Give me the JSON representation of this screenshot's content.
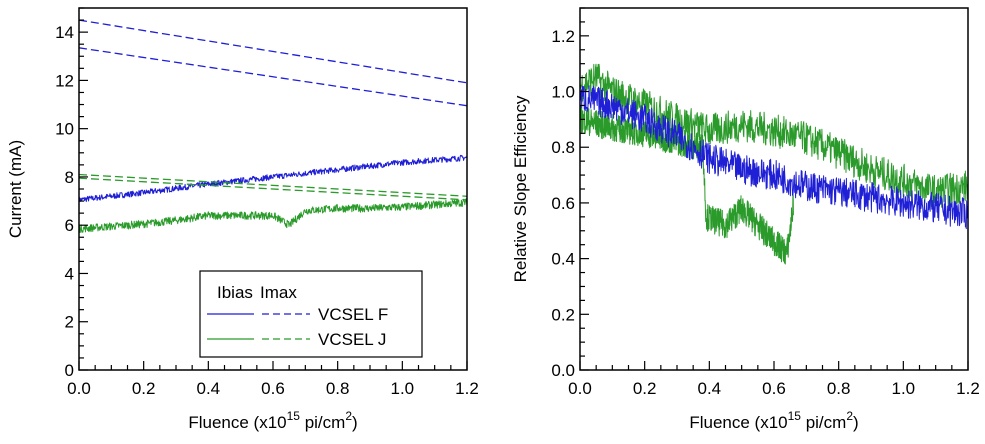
{
  "chart_data": [
    {
      "type": "line",
      "xlabel": "Fluence (x10",
      "xlabel_exp": "15",
      "xlabel_unit": " pi/cm",
      "xlabel_unit_exp": "2",
      "xlabel_close": ")",
      "ylabel": "Current (mA)",
      "xlim": [
        0,
        1.2
      ],
      "ylim": [
        0,
        15
      ],
      "xticks": [
        "0.0",
        "0.2",
        "0.4",
        "0.6",
        "0.8",
        "1.0",
        "1.2"
      ],
      "yticks": [
        "0",
        "2",
        "4",
        "6",
        "8",
        "10",
        "12",
        "14"
      ],
      "legend": {
        "placement": "bottom-right",
        "col_ibias": "Ibias",
        "col_imax": "Imax",
        "rows": [
          "VCSEL F",
          "VCSEL J"
        ]
      },
      "series": [
        {
          "name": "VCSEL F",
          "kind": "Ibias",
          "color": "#1f1fd6",
          "dash": false,
          "noise": 0.12,
          "x": [
            0,
            0.2,
            0.4,
            0.6,
            0.8,
            1.0,
            1.2
          ],
          "y": [
            7.05,
            7.35,
            7.7,
            8.0,
            8.3,
            8.6,
            8.8
          ]
        },
        {
          "name": "VCSEL F",
          "kind": "Imax",
          "color": "#1f1fd6",
          "dash": true,
          "noise": 0,
          "x": [
            0,
            1.2
          ],
          "y": [
            14.5,
            11.9
          ]
        },
        {
          "name": "VCSEL F",
          "kind": "Imax",
          "color": "#1f1fd6",
          "dash": true,
          "noise": 0,
          "x": [
            0,
            1.2
          ],
          "y": [
            13.35,
            10.95
          ]
        },
        {
          "name": "VCSEL J",
          "kind": "Ibias",
          "color": "#2a9a2a",
          "dash": false,
          "noise": 0.16,
          "x": [
            0,
            0.1,
            0.2,
            0.3,
            0.4,
            0.5,
            0.6,
            0.65,
            0.7,
            0.8,
            0.9,
            1.0,
            1.1,
            1.2
          ],
          "y": [
            5.85,
            5.95,
            6.05,
            6.2,
            6.4,
            6.4,
            6.4,
            6.0,
            6.6,
            6.7,
            6.7,
            6.75,
            6.85,
            6.95
          ]
        },
        {
          "name": "VCSEL J",
          "kind": "Imax",
          "color": "#2a9a2a",
          "dash": true,
          "noise": 0,
          "x": [
            0,
            1.2
          ],
          "y": [
            8.1,
            7.2
          ]
        },
        {
          "name": "VCSEL J",
          "kind": "Imax",
          "color": "#2a9a2a",
          "dash": true,
          "noise": 0,
          "x": [
            0,
            1.2
          ],
          "y": [
            7.95,
            7.05
          ]
        }
      ]
    },
    {
      "type": "line",
      "xlabel": "Fluence (x10",
      "xlabel_exp": "15",
      "xlabel_unit": " pi/cm",
      "xlabel_unit_exp": "2",
      "xlabel_close": ")",
      "ylabel": "Relative Slope Efficiency",
      "xlim": [
        0,
        1.2
      ],
      "ylim": [
        0,
        1.3
      ],
      "xticks": [
        "0.0",
        "0.2",
        "0.4",
        "0.6",
        "0.8",
        "1.0",
        "1.2"
      ],
      "yticks": [
        "0.0",
        "0.2",
        "0.4",
        "0.6",
        "0.8",
        "1.0",
        "1.2"
      ],
      "series": [
        {
          "name": "VCSEL J",
          "color": "#2a9a2a",
          "dash": false,
          "noise": 0.06,
          "x": [
            0,
            0.05,
            0.1,
            0.2,
            0.3,
            0.4,
            0.5,
            0.6,
            0.7,
            0.8,
            0.9,
            1.0,
            1.1,
            1.2
          ],
          "y": [
            1.02,
            1.05,
            1.0,
            0.95,
            0.9,
            0.86,
            0.88,
            0.86,
            0.83,
            0.78,
            0.72,
            0.68,
            0.64,
            0.66
          ]
        },
        {
          "name": "VCSEL J",
          "color": "#2a9a2a",
          "dash": false,
          "noise": 0.05,
          "x": [
            0,
            0.1,
            0.2,
            0.3,
            0.38,
            0.39,
            0.45,
            0.5,
            0.55,
            0.6,
            0.64,
            0.65,
            0.66
          ],
          "y": [
            0.9,
            0.87,
            0.85,
            0.82,
            0.8,
            0.55,
            0.52,
            0.58,
            0.52,
            0.46,
            0.42,
            0.5,
            0.6
          ]
        },
        {
          "name": "VCSEL F",
          "color": "#1f1fd6",
          "dash": false,
          "noise": 0.055,
          "x": [
            0,
            0.1,
            0.2,
            0.3,
            0.4,
            0.5,
            0.6,
            0.7,
            0.8,
            0.9,
            1.0,
            1.1,
            1.2
          ],
          "y": [
            0.98,
            0.95,
            0.9,
            0.84,
            0.76,
            0.72,
            0.7,
            0.66,
            0.64,
            0.62,
            0.6,
            0.58,
            0.56
          ]
        }
      ]
    }
  ]
}
